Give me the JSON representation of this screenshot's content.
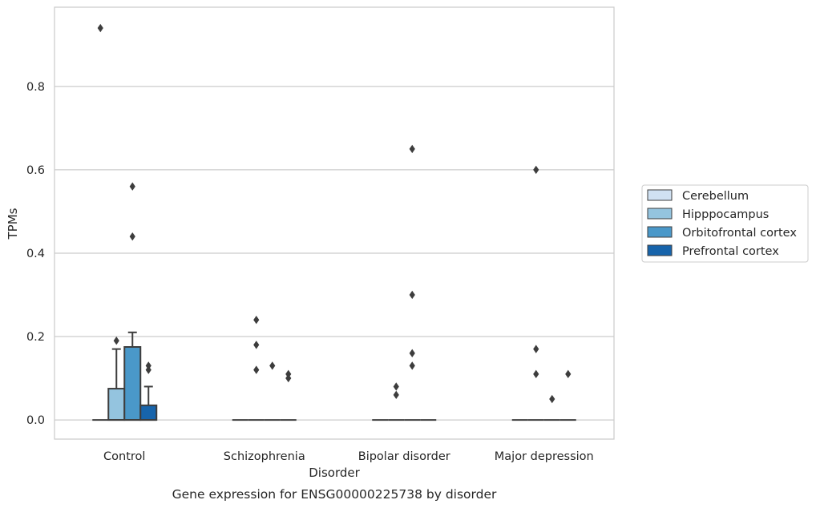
{
  "chart_data": {
    "type": "box",
    "title": "Gene expression for ENSG00000225738 by disorder",
    "xlabel": "Disorder",
    "ylabel": "TPMs",
    "ylim": [
      -0.046,
      0.99
    ],
    "yticks": [
      "0.0",
      "0.2",
      "0.4",
      "0.6",
      "0.8"
    ],
    "grid": "horizontal",
    "legend_position": "right",
    "categories": [
      "Control",
      "Schizophrenia",
      "Bipolar disorder",
      "Major depression"
    ],
    "series": [
      {
        "name": "Cerebellum",
        "color": "#d0e1f2",
        "boxes": [
          {
            "q1": 0,
            "median": 0,
            "q3": 0,
            "whisker_low": 0,
            "whisker_high": 0,
            "outliers": [
              0.94
            ]
          },
          {
            "q1": 0,
            "median": 0,
            "q3": 0,
            "whisker_low": 0,
            "whisker_high": 0,
            "outliers": []
          },
          {
            "q1": 0,
            "median": 0,
            "q3": 0,
            "whisker_low": 0,
            "whisker_high": 0,
            "outliers": []
          },
          {
            "q1": 0,
            "median": 0,
            "q3": 0,
            "whisker_low": 0,
            "whisker_high": 0,
            "outliers": []
          }
        ]
      },
      {
        "name": "Hipppocampus",
        "color": "#94c4df",
        "boxes": [
          {
            "q1": 0,
            "median": 0,
            "q3": 0.075,
            "whisker_low": 0,
            "whisker_high": 0.17,
            "outliers": [
              0.19
            ]
          },
          {
            "q1": 0,
            "median": 0,
            "q3": 0,
            "whisker_low": 0,
            "whisker_high": 0,
            "outliers": [
              0.24,
              0.18,
              0.12
            ]
          },
          {
            "q1": 0,
            "median": 0,
            "q3": 0,
            "whisker_low": 0,
            "whisker_high": 0,
            "outliers": [
              0.08,
              0.06
            ]
          },
          {
            "q1": 0,
            "median": 0,
            "q3": 0,
            "whisker_low": 0,
            "whisker_high": 0,
            "outliers": [
              0.6,
              0.17,
              0.11
            ]
          }
        ]
      },
      {
        "name": "Orbitofrontal cortex",
        "color": "#4a98c9",
        "boxes": [
          {
            "q1": 0,
            "median": 0,
            "q3": 0.175,
            "whisker_low": 0,
            "whisker_high": 0.21,
            "outliers": [
              0.56,
              0.44
            ]
          },
          {
            "q1": 0,
            "median": 0,
            "q3": 0,
            "whisker_low": 0,
            "whisker_high": 0,
            "outliers": [
              0.13
            ]
          },
          {
            "q1": 0,
            "median": 0,
            "q3": 0,
            "whisker_low": 0,
            "whisker_high": 0,
            "outliers": [
              0.3,
              0.16,
              0.13
            ]
          },
          {
            "q1": 0,
            "median": 0,
            "q3": 0,
            "whisker_low": 0,
            "whisker_high": 0,
            "outliers": [
              0.05
            ]
          }
        ]
      },
      {
        "name": "Prefrontal cortex",
        "color": "#1764ab",
        "boxes": [
          {
            "q1": 0,
            "median": 0,
            "q3": 0.035,
            "whisker_low": 0,
            "whisker_high": 0.08,
            "outliers": [
              0.13,
              0.12
            ]
          },
          {
            "q1": 0,
            "median": 0,
            "q3": 0,
            "whisker_low": 0,
            "whisker_high": 0,
            "outliers": [
              0.11,
              0.1
            ]
          },
          {
            "q1": 0,
            "median": 0,
            "q3": 0,
            "whisker_low": 0,
            "whisker_high": 0,
            "outliers": []
          },
          {
            "q1": 0,
            "median": 0,
            "q3": 0,
            "whisker_low": 0,
            "whisker_high": 0,
            "outliers": [
              0.11
            ]
          }
        ]
      }
    ],
    "extra_outliers": [
      {
        "category": 2,
        "series": 2,
        "value": 0.65,
        "note": ""
      }
    ]
  }
}
